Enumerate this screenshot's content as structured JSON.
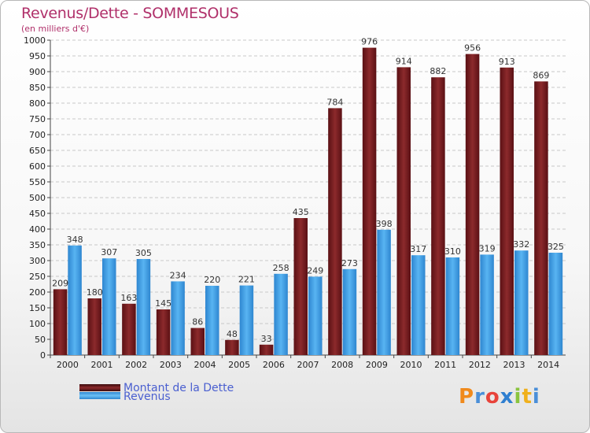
{
  "header": {
    "title": "Revenus/Dette - SOMMESOUS",
    "subtitle": "(en milliers d'€)"
  },
  "legend": {
    "items": [
      {
        "label": "Montant de la Dette",
        "color": "#7a1f22"
      },
      {
        "label": "Revenus",
        "color": "#3d9ee8"
      }
    ]
  },
  "logo": {
    "text": "Proxiti",
    "colors": [
      "#f08a1c",
      "#4a8fd8",
      "#e8433a",
      "#2f7fd0",
      "#8ac43e",
      "#f0b01c",
      "#4a8fd8"
    ]
  },
  "chart_data": {
    "type": "bar",
    "title": "Revenus/Dette - SOMMESOUS",
    "ylabel": "(en milliers d'€)",
    "categories": [
      "2000",
      "2001",
      "2002",
      "2003",
      "2004",
      "2005",
      "2006",
      "2007",
      "2008",
      "2009",
      "2010",
      "2011",
      "2012",
      "2013",
      "2014"
    ],
    "series": [
      {
        "name": "Montant de la Dette",
        "color": "#7a1f22",
        "values": [
          209,
          180,
          163,
          145,
          86,
          48,
          33,
          435,
          784,
          976,
          914,
          882,
          956,
          913,
          869
        ]
      },
      {
        "name": "Revenus",
        "color": "#3d9ee8",
        "values": [
          348,
          307,
          305,
          234,
          220,
          221,
          258,
          249,
          273,
          398,
          317,
          310,
          319,
          332,
          325
        ]
      }
    ],
    "ylim": [
      0,
      1000
    ],
    "yticks": [
      0,
      50,
      100,
      150,
      200,
      250,
      300,
      350,
      400,
      450,
      500,
      550,
      600,
      650,
      700,
      750,
      800,
      850,
      900,
      950,
      1000
    ],
    "grid": true,
    "legend_position": "bottom-left"
  }
}
